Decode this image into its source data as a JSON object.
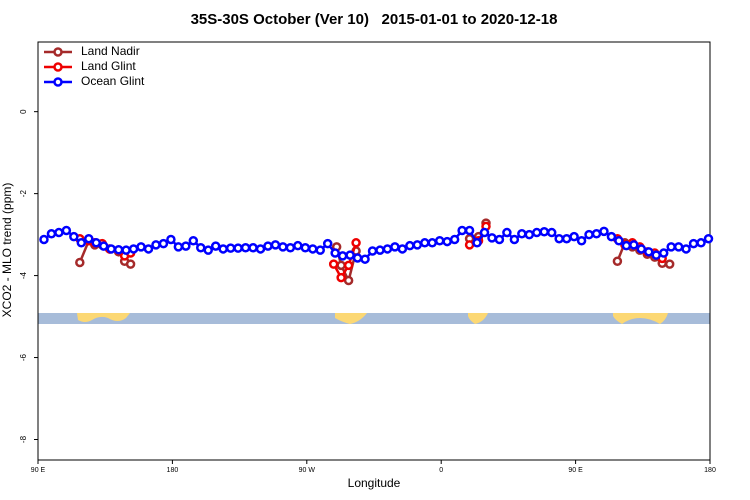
{
  "chart_data": {
    "type": "line",
    "title": "35S-30S October (Ver 10)   2015-01-01 to 2020-12-18",
    "xlabel": "Longitude",
    "ylabel": "XCO2 - MLO trend (ppm)",
    "xlim": [
      90,
      540
    ],
    "xticks": [
      {
        "value": 90,
        "label": "90 E"
      },
      {
        "value": 180,
        "label": "180"
      },
      {
        "value": 270,
        "label": "90 W"
      },
      {
        "value": 360,
        "label": "0"
      },
      {
        "value": 450,
        "label": "90 E"
      },
      {
        "value": 540,
        "label": "180"
      }
    ],
    "ylim": [
      -8.5,
      1.7
    ],
    "yticks": [
      -8,
      -6,
      -4,
      -2,
      0
    ],
    "legend": "top-left",
    "series": [
      {
        "name": "Land Nadir",
        "color": "#a52a2a",
        "x": [
          118,
          124,
          128,
          133,
          138,
          144,
          148,
          152,
          null,
          290,
          293,
          298,
          303,
          null,
          379,
          385,
          390,
          null,
          478,
          483,
          488,
          493,
          498,
          503,
          508,
          513
        ],
        "values": [
          -3.68,
          -3.15,
          -3.25,
          -3.25,
          -3.35,
          -3.42,
          -3.65,
          -3.72,
          null,
          -3.3,
          -3.75,
          -4.12,
          -3.4,
          null,
          -3.1,
          -3.05,
          -2.72,
          null,
          -3.65,
          -3.2,
          -3.3,
          -3.38,
          -3.48,
          -3.55,
          -3.7,
          -3.72
        ]
      },
      {
        "name": "Land Glint",
        "color": "#ee0000",
        "x": [
          118,
          124,
          128,
          133,
          138,
          144,
          148,
          152,
          null,
          288,
          293,
          298,
          303,
          null,
          379,
          385,
          390,
          null,
          478,
          483,
          488,
          493,
          498,
          503,
          508
        ],
        "values": [
          -3.1,
          -3.15,
          -3.2,
          -3.22,
          -3.35,
          -3.38,
          -3.52,
          -3.45,
          null,
          -3.72,
          -4.05,
          -3.75,
          -3.2,
          null,
          -3.25,
          -3.15,
          -2.8,
          null,
          -3.1,
          -3.25,
          -3.2,
          -3.3,
          -3.42,
          -3.45,
          -3.58
        ]
      },
      {
        "name": "Ocean Glint",
        "color": "#0000ff",
        "x": [
          94,
          99,
          104,
          109,
          114,
          119,
          124,
          129,
          134,
          139,
          144,
          149,
          154,
          159,
          164,
          169,
          174,
          179,
          184,
          189,
          194,
          199,
          204,
          209,
          214,
          219,
          224,
          229,
          234,
          239,
          244,
          249,
          254,
          259,
          264,
          269,
          274,
          279,
          284,
          289,
          294,
          299,
          304,
          309,
          314,
          319,
          324,
          329,
          334,
          339,
          344,
          349,
          354,
          359,
          364,
          369,
          374,
          379,
          384,
          389,
          394,
          399,
          404,
          409,
          414,
          419,
          424,
          429,
          434,
          439,
          444,
          449,
          454,
          459,
          464,
          469,
          474,
          479,
          484,
          489,
          494,
          499,
          504,
          509,
          514,
          519,
          524,
          529,
          534,
          539
        ],
        "values": [
          -3.12,
          -2.98,
          -2.95,
          -2.9,
          -3.05,
          -3.2,
          -3.1,
          -3.2,
          -3.28,
          -3.35,
          -3.37,
          -3.38,
          -3.35,
          -3.3,
          -3.35,
          -3.25,
          -3.22,
          -3.12,
          -3.3,
          -3.28,
          -3.15,
          -3.32,
          -3.38,
          -3.28,
          -3.35,
          -3.33,
          -3.33,
          -3.32,
          -3.32,
          -3.35,
          -3.28,
          -3.25,
          -3.3,
          -3.32,
          -3.27,
          -3.32,
          -3.35,
          -3.38,
          -3.22,
          -3.45,
          -3.52,
          -3.5,
          -3.57,
          -3.6,
          -3.4,
          -3.38,
          -3.35,
          -3.3,
          -3.35,
          -3.27,
          -3.25,
          -3.2,
          -3.2,
          -3.15,
          -3.17,
          -3.12,
          -2.9,
          -2.9,
          -3.2,
          -2.95,
          -3.08,
          -3.12,
          -2.95,
          -3.12,
          -2.98,
          -3.0,
          -2.95,
          -2.93,
          -2.95,
          -3.1,
          -3.1,
          -3.05,
          -3.15,
          -3.0,
          -2.98,
          -2.92,
          -3.05,
          -3.15,
          -3.27,
          -3.25,
          -3.35,
          -3.42,
          -3.5,
          -3.45,
          -3.3,
          -3.3,
          -3.35,
          -3.22,
          -3.2,
          -3.1
        ]
      }
    ]
  }
}
